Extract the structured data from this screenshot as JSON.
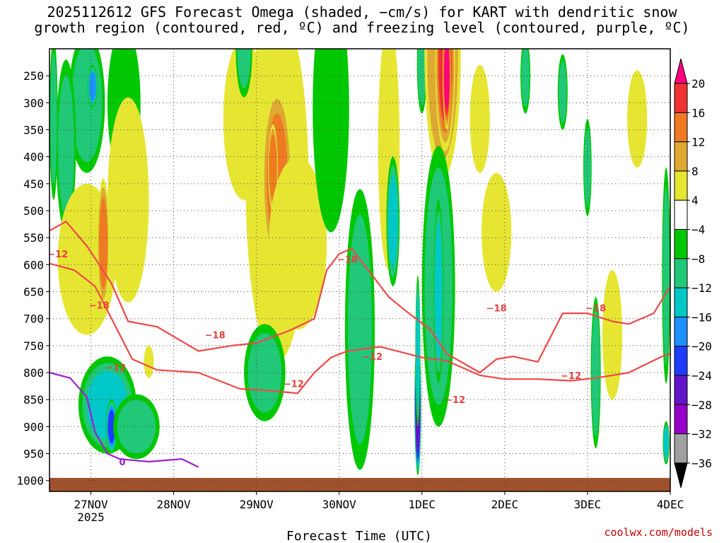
{
  "title": {
    "line1": "2025112612 GFS Forecast Omega (shaded, −cm/s) for KART with dendritic snow",
    "line2": "growth region (contoured, red, ºC) and freezing level (contoured, purple, ºC)"
  },
  "credit": "coolwx.com/models",
  "chart_data": {
    "type": "time-height cross section",
    "xlabel": "Forecast Time (UTC)",
    "x_ticks": [
      {
        "label": "27NOV",
        "sub": "2025",
        "x": 0.5
      },
      {
        "label": "28NOV",
        "sub": "",
        "x": 1.5
      },
      {
        "label": "29NOV",
        "sub": "",
        "x": 2.5
      },
      {
        "label": "30NOV",
        "sub": "",
        "x": 3.5
      },
      {
        "label": "1DEC",
        "sub": "",
        "x": 4.5
      },
      {
        "label": "2DEC",
        "sub": "",
        "x": 5.5
      },
      {
        "label": "3DEC",
        "sub": "",
        "x": 6.5
      },
      {
        "label": "4DEC",
        "sub": "",
        "x": 7.5
      }
    ],
    "xlim": [
      0,
      7.5
    ],
    "y_ticks": [
      250,
      300,
      350,
      400,
      450,
      500,
      550,
      600,
      650,
      700,
      750,
      800,
      850,
      900,
      950,
      1000
    ],
    "ylim": [
      200,
      1020
    ],
    "colorbar": {
      "labels": [
        "20",
        "16",
        "12",
        "8",
        "4",
        "−4",
        "−8",
        "−12",
        "−16",
        "−20",
        "−24",
        "−28",
        "−32",
        "−36"
      ],
      "colors": [
        "#ff007f",
        "#f03232",
        "#ee7a22",
        "#dea932",
        "#e6e632",
        "#ffffff",
        "#00c800",
        "#20c878",
        "#00c8c8",
        "#1e90ff",
        "#1e3cff",
        "#6414c8",
        "#9600c8",
        "#a0a0a0",
        "#000000"
      ]
    },
    "omega_blobs": [
      {
        "t": 0.45,
        "p": 300,
        "rt": 0.22,
        "rp": 130,
        "v": -10
      },
      {
        "t": 0.52,
        "p": 270,
        "rt": 0.06,
        "rp": 40,
        "v": -18
      },
      {
        "t": 0.2,
        "p": 380,
        "rt": 0.12,
        "rp": 160,
        "v": -8
      },
      {
        "t": 0.05,
        "p": 330,
        "rt": 0.05,
        "rp": 150,
        "v": -8
      },
      {
        "t": 0.9,
        "p": 300,
        "rt": 0.2,
        "rp": 140,
        "v": -7
      },
      {
        "t": 0.45,
        "p": 590,
        "rt": 0.35,
        "rp": 140,
        "v": 6
      },
      {
        "t": 0.95,
        "p": 480,
        "rt": 0.25,
        "rp": 190,
        "v": 5
      },
      {
        "t": 0.65,
        "p": 560,
        "rt": 0.07,
        "rp": 120,
        "v": 12
      },
      {
        "t": 0.7,
        "p": 860,
        "rt": 0.35,
        "rp": 90,
        "v": -12
      },
      {
        "t": 0.75,
        "p": 900,
        "rt": 0.07,
        "rp": 50,
        "v": -22
      },
      {
        "t": 1.05,
        "p": 900,
        "rt": 0.28,
        "rp": 60,
        "v": -9
      },
      {
        "t": 1.2,
        "p": 780,
        "rt": 0.06,
        "rp": 30,
        "v": 5
      },
      {
        "t": 2.35,
        "p": 330,
        "rt": 0.25,
        "rp": 150,
        "v": 6
      },
      {
        "t": 2.75,
        "p": 450,
        "rt": 0.38,
        "rp": 330,
        "v": 7
      },
      {
        "t": 2.75,
        "p": 440,
        "rt": 0.18,
        "rp": 170,
        "v": 12
      },
      {
        "t": 2.7,
        "p": 420,
        "rt": 0.06,
        "rp": 80,
        "v": 15
      },
      {
        "t": 3.0,
        "p": 560,
        "rt": 0.35,
        "rp": 160,
        "v": 6
      },
      {
        "t": 2.35,
        "p": 200,
        "rt": 0.1,
        "rp": 90,
        "v": -8
      },
      {
        "t": 2.6,
        "p": 800,
        "rt": 0.25,
        "rp": 90,
        "v": -8
      },
      {
        "t": 3.4,
        "p": 310,
        "rt": 0.22,
        "rp": 230,
        "v": -7
      },
      {
        "t": 3.75,
        "p": 720,
        "rt": 0.18,
        "rp": 260,
        "v": -8
      },
      {
        "t": 4.1,
        "p": 380,
        "rt": 0.13,
        "rp": 230,
        "v": 7
      },
      {
        "t": 4.15,
        "p": 520,
        "rt": 0.08,
        "rp": 120,
        "v": -12
      },
      {
        "t": 4.5,
        "p": 230,
        "rt": 0.06,
        "rp": 90,
        "v": -9
      },
      {
        "t": 4.75,
        "p": 210,
        "rt": 0.22,
        "rp": 230,
        "v": 10
      },
      {
        "t": 4.78,
        "p": 230,
        "rt": 0.12,
        "rp": 160,
        "v": 17
      },
      {
        "t": 4.8,
        "p": 250,
        "rt": 0.05,
        "rp": 100,
        "v": 22
      },
      {
        "t": 4.45,
        "p": 860,
        "rt": 0.04,
        "rp": 130,
        "v": -36
      },
      {
        "t": 4.45,
        "p": 760,
        "rt": 0.03,
        "rp": 140,
        "v": -14
      },
      {
        "t": 4.7,
        "p": 640,
        "rt": 0.2,
        "rp": 260,
        "v": -10
      },
      {
        "t": 4.7,
        "p": 650,
        "rt": 0.06,
        "rp": 170,
        "v": -15
      },
      {
        "t": 5.4,
        "p": 540,
        "rt": 0.18,
        "rp": 110,
        "v": 5
      },
      {
        "t": 5.2,
        "p": 330,
        "rt": 0.12,
        "rp": 100,
        "v": 4
      },
      {
        "t": 5.75,
        "p": 250,
        "rt": 0.06,
        "rp": 70,
        "v": -8
      },
      {
        "t": 6.2,
        "p": 280,
        "rt": 0.06,
        "rp": 70,
        "v": -8
      },
      {
        "t": 6.5,
        "p": 420,
        "rt": 0.05,
        "rp": 90,
        "v": -8
      },
      {
        "t": 6.6,
        "p": 800,
        "rt": 0.06,
        "rp": 140,
        "v": -10
      },
      {
        "t": 6.8,
        "p": 730,
        "rt": 0.12,
        "rp": 120,
        "v": 5
      },
      {
        "t": 7.1,
        "p": 330,
        "rt": 0.12,
        "rp": 90,
        "v": 5
      },
      {
        "t": 7.45,
        "p": 620,
        "rt": 0.05,
        "rp": 200,
        "v": -8
      },
      {
        "t": 7.45,
        "p": 930,
        "rt": 0.04,
        "rp": 40,
        "v": -12
      }
    ],
    "contours": {
      "neg12": [
        [
          0,
          598
        ],
        [
          0.3,
          610
        ],
        [
          0.55,
          640
        ],
        [
          0.75,
          700
        ],
        [
          1.0,
          775
        ],
        [
          1.3,
          795
        ],
        [
          1.8,
          800
        ],
        [
          2.3,
          830
        ],
        [
          2.6,
          833
        ],
        [
          3.0,
          838
        ],
        [
          3.2,
          800
        ],
        [
          3.4,
          772
        ],
        [
          3.6,
          760
        ],
        [
          4.0,
          752
        ],
        [
          4.5,
          772
        ],
        [
          4.8,
          778
        ],
        [
          5.2,
          805
        ],
        [
          5.5,
          812
        ],
        [
          5.9,
          812
        ],
        [
          6.3,
          815
        ],
        [
          6.6,
          810
        ],
        [
          7.0,
          800
        ],
        [
          7.4,
          770
        ],
        [
          7.5,
          765
        ]
      ],
      "neg18": [
        [
          0,
          537
        ],
        [
          0.2,
          520
        ],
        [
          0.45,
          565
        ],
        [
          0.75,
          635
        ],
        [
          0.95,
          705
        ],
        [
          1.3,
          715
        ],
        [
          1.8,
          760
        ],
        [
          2.2,
          750
        ],
        [
          2.5,
          745
        ],
        [
          2.9,
          722
        ],
        [
          3.2,
          700
        ],
        [
          3.35,
          610
        ],
        [
          3.5,
          580
        ],
        [
          3.65,
          570
        ],
        [
          3.9,
          620
        ],
        [
          4.1,
          660
        ],
        [
          4.3,
          685
        ],
        [
          4.6,
          720
        ],
        [
          4.8,
          765
        ],
        [
          5.2,
          800
        ],
        [
          5.4,
          775
        ],
        [
          5.6,
          770
        ],
        [
          5.9,
          780
        ],
        [
          6.2,
          690
        ],
        [
          6.5,
          690
        ],
        [
          6.8,
          705
        ],
        [
          7.0,
          710
        ],
        [
          7.3,
          690
        ],
        [
          7.5,
          640
        ]
      ],
      "label_m12": [
        {
          "t": 0.1,
          "p": 580
        },
        {
          "t": 0.8,
          "p": 790
        },
        {
          "t": 2.95,
          "p": 820
        },
        {
          "t": 3.9,
          "p": 770
        },
        {
          "t": 4.9,
          "p": 850
        },
        {
          "t": 6.3,
          "p": 805
        }
      ],
      "label_m18": [
        {
          "t": 0.6,
          "p": 675
        },
        {
          "t": 2.0,
          "p": 730
        },
        {
          "t": 3.6,
          "p": 590
        },
        {
          "t": 5.4,
          "p": 680
        },
        {
          "t": 6.6,
          "p": 680
        }
      ],
      "freezing": [
        [
          0,
          800
        ],
        [
          0.25,
          810
        ],
        [
          0.45,
          845
        ],
        [
          0.55,
          910
        ],
        [
          0.7,
          950
        ],
        [
          0.85,
          960
        ],
        [
          1.2,
          965
        ],
        [
          1.6,
          960
        ],
        [
          1.8,
          975
        ]
      ],
      "label_0": [
        {
          "t": 0.88,
          "p": 965
        }
      ]
    }
  }
}
